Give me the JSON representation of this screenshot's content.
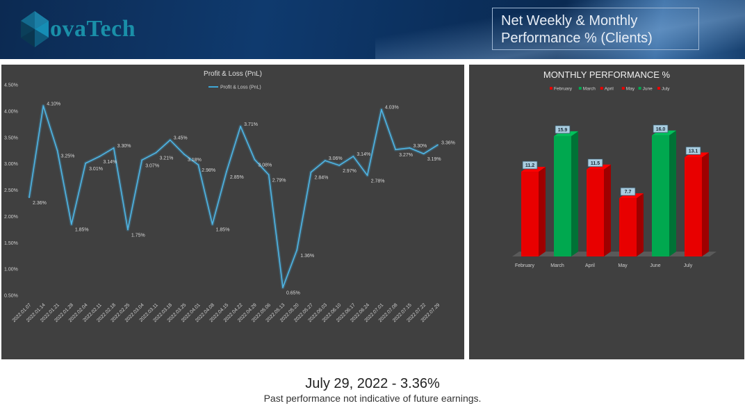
{
  "header": {
    "logo_text": "ovaTech",
    "title_line1": "Net Weekly & Monthly",
    "title_line2": "Performance % (Clients)"
  },
  "footer": {
    "headline": "July 29, 2022 - 3.36%",
    "disclaimer": "Past performance not indicative of future earnings."
  },
  "colors": {
    "line": "#3fa7d6",
    "red": "#e80000",
    "green": "#00a84f",
    "panel": "#404040"
  },
  "chart_data": [
    {
      "type": "line",
      "title": "Profit & Loss (PnL)",
      "legend": "Profit & Loss (PnL)",
      "legend_position": "top",
      "ylim": [
        0.5,
        4.5
      ],
      "yticks": [
        "0.50%",
        "1.00%",
        "1.50%",
        "2.00%",
        "2.50%",
        "3.00%",
        "3.50%",
        "4.00%",
        "4.50%"
      ],
      "grid": false,
      "x": [
        "2022.01.07",
        "2022.01.14",
        "2022.01.21",
        "2022.01.28",
        "2022.02.04",
        "2022.02.11",
        "2022.02.18",
        "2022.02.25",
        "2022.03.04",
        "2022.03.11",
        "2022.03.18",
        "2022.03.25",
        "2022.04.01",
        "2022.04.08",
        "2022.04.15",
        "2022.04.22",
        "2022.04.29",
        "2022.05.06",
        "2022.05.13",
        "2022.05.20",
        "2022.05.27",
        "2022.06.03",
        "2022.06.10",
        "2022.06.17",
        "2022.06.24",
        "2022.07.01",
        "2022.07.08",
        "2022.07.15",
        "2022.07.22",
        "2022.07.29"
      ],
      "values": [
        2.36,
        4.1,
        3.25,
        1.85,
        3.01,
        3.14,
        3.3,
        1.75,
        3.07,
        3.21,
        3.45,
        3.18,
        2.98,
        1.85,
        2.85,
        3.71,
        3.08,
        2.79,
        0.65,
        1.36,
        2.84,
        3.06,
        2.97,
        3.14,
        2.78,
        4.03,
        3.27,
        3.3,
        3.19,
        3.36
      ],
      "labels": [
        "2.36%",
        "4.10%",
        "3.25%",
        "1.85%",
        "3.01%",
        "3.14%",
        "3.30%",
        "1.75%",
        "3.07%",
        "3.21%",
        "3.45%",
        "3.18%",
        "2.98%",
        "1.85%",
        "2.85%",
        "3.71%",
        "3.08%",
        "2.79%",
        "0.65%",
        "1.36%",
        "2.84%",
        "3.06%",
        "2.97%",
        "3.14%",
        "2.78%",
        "4.03%",
        "3.27%",
        "3.30%",
        "3.19%",
        "3.36%"
      ]
    },
    {
      "type": "bar",
      "title": "MONTHLY PERFORMANCE %",
      "legend_position": "top",
      "categories": [
        "February",
        "March",
        "April",
        "May",
        "June",
        "July"
      ],
      "values": [
        11.2,
        15.9,
        11.5,
        7.7,
        16.0,
        13.1
      ],
      "labels": [
        "11.2",
        "15.9",
        "11.5",
        "7.7",
        "16.0",
        "13.1"
      ],
      "bar_colors": [
        "#e80000",
        "#00a84f",
        "#e80000",
        "#e80000",
        "#00a84f",
        "#e80000"
      ],
      "ylim": [
        0,
        18
      ]
    }
  ]
}
